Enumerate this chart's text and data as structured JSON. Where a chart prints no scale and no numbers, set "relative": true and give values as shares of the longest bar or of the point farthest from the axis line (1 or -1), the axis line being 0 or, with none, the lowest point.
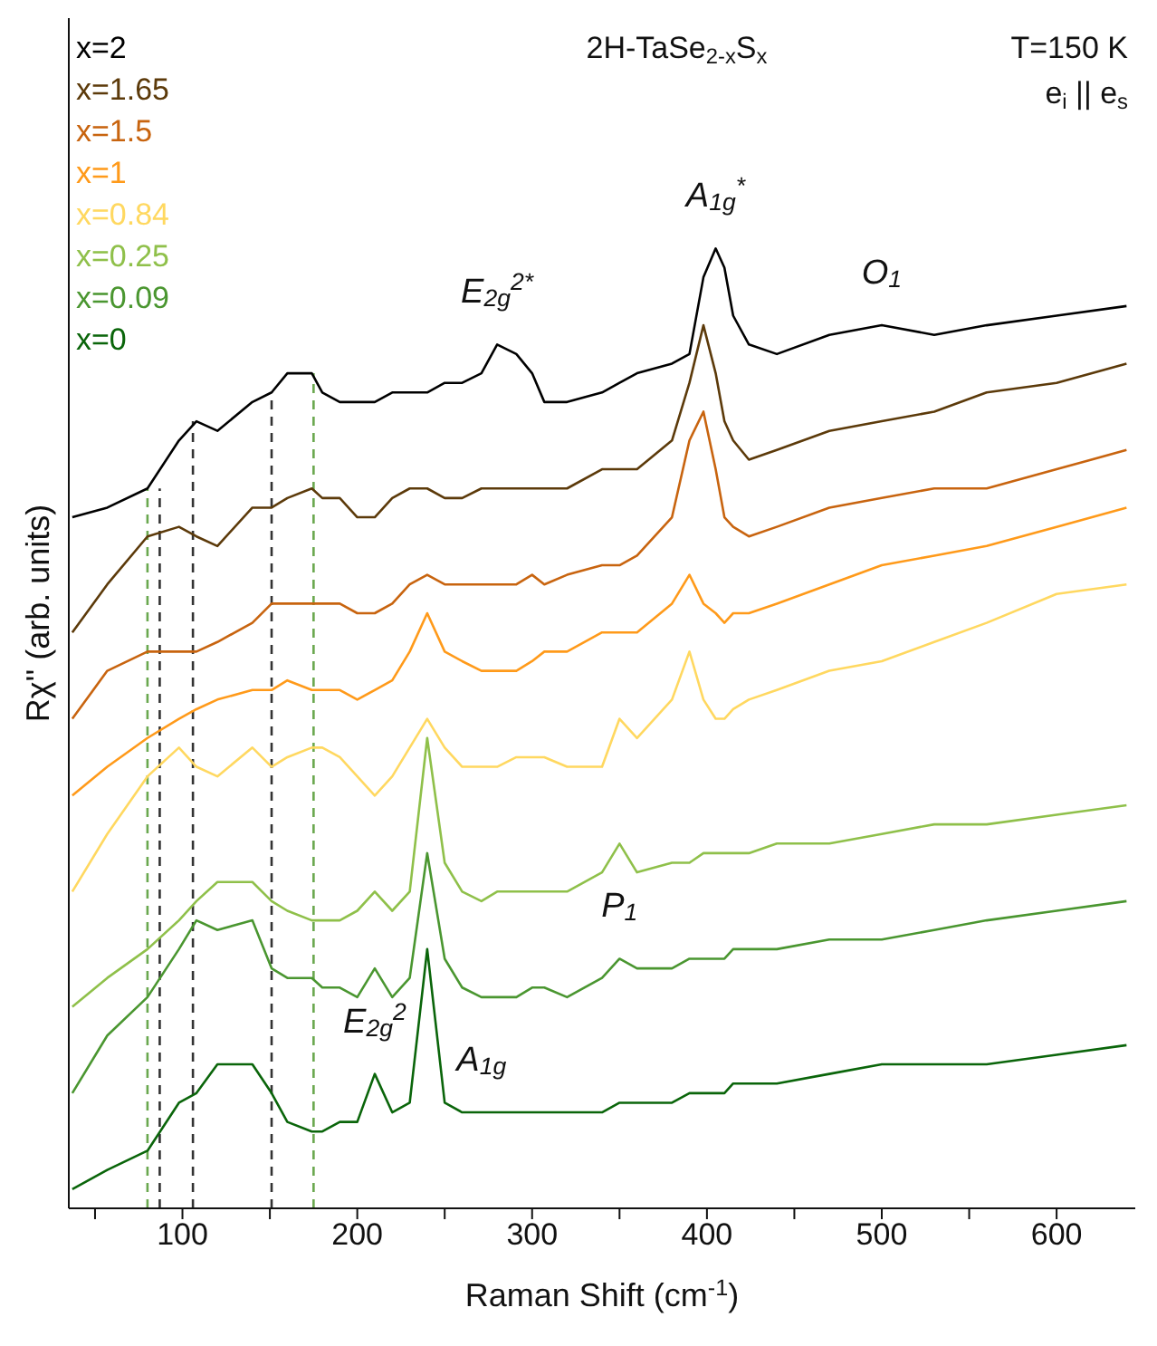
{
  "chart_data": {
    "type": "line",
    "title": "2H-TaSe$_{2-x}$S$_{x}$",
    "xlabel": "Raman Shift (cm$^{-1}$)",
    "ylabel": "Rχ'' (arb. units)",
    "relative": true,
    "legend": "top left",
    "tick_labels": "x",
    "xlim": [
      35,
      645
    ],
    "xticks": [
      {
        "value": 50,
        "label": null
      },
      100,
      {
        "value": 150,
        "label": null
      },
      200,
      {
        "value": 250,
        "label": null
      },
      300,
      {
        "value": 350,
        "label": null
      },
      400,
      {
        "value": 450,
        "label": null
      },
      500,
      {
        "value": 550,
        "label": null
      },
      600
    ],
    "x": [
      37,
      57,
      80,
      98,
      108,
      120,
      140,
      151,
      160,
      174,
      180,
      190,
      200,
      210,
      220,
      230,
      240,
      250,
      260,
      271,
      280,
      291,
      300,
      307,
      320,
      340,
      350,
      360,
      380,
      390,
      398,
      405,
      410,
      415,
      424,
      440,
      470,
      500,
      530,
      560,
      600,
      640
    ],
    "series": [
      {
        "name": "x=2",
        "color": "#000000",
        "values": [
          0.72,
          0.73,
          0.75,
          0.8,
          0.82,
          0.81,
          0.84,
          0.85,
          0.87,
          0.87,
          0.85,
          0.84,
          0.84,
          0.84,
          0.85,
          0.85,
          0.85,
          0.86,
          0.86,
          0.87,
          0.9,
          0.89,
          0.87,
          0.84,
          0.84,
          0.85,
          0.86,
          0.87,
          0.88,
          0.89,
          0.97,
          1.0,
          0.98,
          0.93,
          0.9,
          0.89,
          0.91,
          0.92,
          0.91,
          0.92,
          0.93,
          0.94
        ]
      },
      {
        "name": "x=1.65",
        "color": "#5c3a0a",
        "values": [
          0.6,
          0.65,
          0.7,
          0.71,
          0.7,
          0.69,
          0.73,
          0.73,
          0.74,
          0.75,
          0.74,
          0.74,
          0.72,
          0.72,
          0.74,
          0.75,
          0.75,
          0.74,
          0.74,
          0.75,
          0.75,
          0.75,
          0.75,
          0.75,
          0.75,
          0.77,
          0.77,
          0.77,
          0.8,
          0.86,
          0.92,
          0.87,
          0.82,
          0.8,
          0.78,
          0.79,
          0.81,
          0.82,
          0.83,
          0.85,
          0.86,
          0.88
        ]
      },
      {
        "name": "x=1.5",
        "color": "#c8640f",
        "values": [
          0.51,
          0.56,
          0.58,
          0.58,
          0.58,
          0.59,
          0.61,
          0.63,
          0.63,
          0.63,
          0.63,
          0.63,
          0.62,
          0.62,
          0.63,
          0.65,
          0.66,
          0.65,
          0.65,
          0.65,
          0.65,
          0.65,
          0.66,
          0.65,
          0.66,
          0.67,
          0.67,
          0.68,
          0.72,
          0.8,
          0.83,
          0.77,
          0.72,
          0.71,
          0.7,
          0.71,
          0.73,
          0.74,
          0.75,
          0.75,
          0.77,
          0.79
        ]
      },
      {
        "name": "x=1",
        "color": "#ff9a1a",
        "values": [
          0.43,
          0.46,
          0.49,
          0.51,
          0.52,
          0.53,
          0.54,
          0.54,
          0.55,
          0.54,
          0.54,
          0.54,
          0.53,
          0.54,
          0.55,
          0.58,
          0.62,
          0.58,
          0.57,
          0.56,
          0.56,
          0.56,
          0.57,
          0.58,
          0.58,
          0.6,
          0.6,
          0.6,
          0.63,
          0.66,
          0.63,
          0.62,
          0.61,
          0.62,
          0.62,
          0.63,
          0.65,
          0.67,
          0.68,
          0.69,
          0.71,
          0.73
        ]
      },
      {
        "name": "x=0.84",
        "color": "#ffd860",
        "values": [
          0.33,
          0.39,
          0.45,
          0.48,
          0.46,
          0.45,
          0.48,
          0.46,
          0.47,
          0.48,
          0.48,
          0.47,
          0.45,
          0.43,
          0.45,
          0.48,
          0.51,
          0.48,
          0.46,
          0.46,
          0.46,
          0.47,
          0.47,
          0.47,
          0.46,
          0.46,
          0.51,
          0.49,
          0.53,
          0.58,
          0.53,
          0.51,
          0.51,
          0.52,
          0.53,
          0.54,
          0.56,
          0.57,
          0.59,
          0.61,
          0.64,
          0.65
        ]
      },
      {
        "name": "x=0.25",
        "color": "#8fc04a",
        "values": [
          0.21,
          0.24,
          0.27,
          0.3,
          0.32,
          0.34,
          0.34,
          0.32,
          0.31,
          0.3,
          0.3,
          0.3,
          0.31,
          0.33,
          0.31,
          0.33,
          0.49,
          0.36,
          0.33,
          0.32,
          0.33,
          0.33,
          0.33,
          0.33,
          0.33,
          0.35,
          0.38,
          0.35,
          0.36,
          0.36,
          0.37,
          0.37,
          0.37,
          0.37,
          0.37,
          0.38,
          0.38,
          0.39,
          0.4,
          0.4,
          0.41,
          0.42
        ]
      },
      {
        "name": "x=0.09",
        "color": "#4a9630",
        "values": [
          0.12,
          0.18,
          0.22,
          0.27,
          0.3,
          0.29,
          0.3,
          0.25,
          0.24,
          0.24,
          0.23,
          0.23,
          0.22,
          0.25,
          0.22,
          0.24,
          0.37,
          0.26,
          0.23,
          0.22,
          0.22,
          0.22,
          0.23,
          0.23,
          0.22,
          0.24,
          0.26,
          0.25,
          0.25,
          0.26,
          0.26,
          0.26,
          0.26,
          0.27,
          0.27,
          0.27,
          0.28,
          0.28,
          0.29,
          0.3,
          0.31,
          0.32
        ]
      },
      {
        "name": "x=0",
        "color": "#0a650a",
        "values": [
          0.02,
          0.04,
          0.06,
          0.11,
          0.12,
          0.15,
          0.15,
          0.12,
          0.09,
          0.08,
          0.08,
          0.09,
          0.09,
          0.14,
          0.1,
          0.11,
          0.27,
          0.11,
          0.1,
          0.1,
          0.1,
          0.1,
          0.1,
          0.1,
          0.1,
          0.1,
          0.11,
          0.11,
          0.11,
          0.12,
          0.12,
          0.12,
          0.12,
          0.13,
          0.13,
          0.13,
          0.14,
          0.15,
          0.15,
          0.15,
          0.16,
          0.17
        ]
      }
    ],
    "ref_lines": [
      {
        "axis": "x",
        "value": 80,
        "color": "#6aa84f",
        "line_style": "dashed"
      },
      {
        "axis": "x",
        "value": 87,
        "color": "#333333",
        "line_style": "dashed"
      },
      {
        "axis": "x",
        "value": 106,
        "color": "#333333",
        "line_style": "dashed"
      },
      {
        "axis": "x",
        "value": 151,
        "color": "#333333",
        "line_style": "dashed"
      },
      {
        "axis": "x",
        "value": 175,
        "color": "#6aa84f",
        "line_style": "dashed"
      }
    ],
    "annotations": [
      "T=150 K",
      "e$_{i}$ || e$_{s}$",
      {
        "text": "E$_{2g}$$^{2*}$",
        "x": 280,
        "y": 0.9
      },
      {
        "text": "A$_{1g}$$^{*}$",
        "x": 405,
        "y": 1.0
      },
      {
        "text": "O$_{1}$",
        "x": 500,
        "y": 0.92
      },
      {
        "text": "P$_{1}$",
        "x": 350,
        "y": 0.26
      },
      {
        "text": "E$_{2g}$$^{2}$",
        "x": 210,
        "y": 0.14
      },
      {
        "text": "A$_{1g}$",
        "x": 271,
        "y": 0.1
      }
    ]
  }
}
